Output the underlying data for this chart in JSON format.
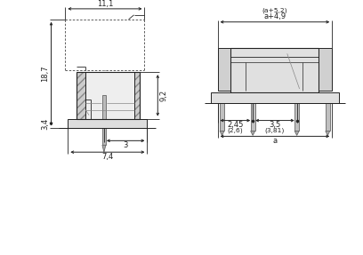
{
  "bg_color": "#ffffff",
  "line_color": "#222222",
  "dim_color": "#222222",
  "annotations": {
    "dim_11_1": "11,1",
    "dim_18_7": "18,7",
    "dim_9_2": "9,2",
    "dim_3_4": "3,4",
    "dim_3": "3",
    "dim_7_4": "7,4",
    "dim_a49": "a+4,9",
    "dim_a52": "(a+5,2)",
    "dim_2_45": "2,45",
    "dim_2_6": "(2,6)",
    "dim_3_5": "3,5",
    "dim_3_81": "(3,81)",
    "dim_a": "a"
  }
}
